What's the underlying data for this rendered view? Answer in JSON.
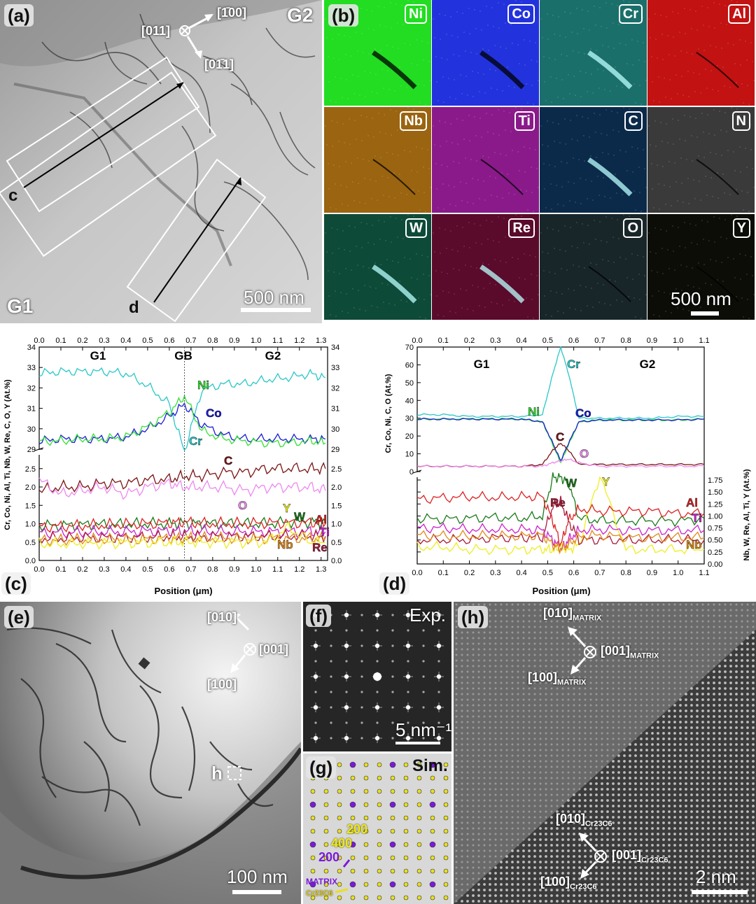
{
  "panel_a": {
    "label": "(a)",
    "grain_top": "G2",
    "grain_bottom": "G1",
    "zone_axis": "[011]",
    "dir1": "[1̄00]",
    "dir2": "[01̄1]",
    "line_c": "c",
    "line_d": "d",
    "scale": "500 nm"
  },
  "panel_b": {
    "label": "(b)",
    "scale": "500 nm",
    "maps": [
      {
        "element": "Ni",
        "color": "#22dd22"
      },
      {
        "element": "Co",
        "color": "#2233dd"
      },
      {
        "element": "Cr",
        "color": "#1a6f6a"
      },
      {
        "element": "Al",
        "color": "#c21212"
      },
      {
        "element": "Nb",
        "color": "#9a6410"
      },
      {
        "element": "Ti",
        "color": "#8a1a8a"
      },
      {
        "element": "C",
        "color": "#0b2a4a"
      },
      {
        "element": "N",
        "color": "#3a3a3a"
      },
      {
        "element": "W",
        "color": "#0e4a38"
      },
      {
        "element": "Re",
        "color": "#5a0a2a"
      },
      {
        "element": "O",
        "color": "#18262a"
      },
      {
        "element": "Y",
        "color": "#0d0d08"
      }
    ]
  },
  "panel_c": {
    "label": "(c)",
    "xlabel": "Position (μm)",
    "ylabel_left": "Cr, Co, Ni, Al, Ti, Nb, W, Re, C, O, Y (At.%)",
    "regions": [
      "G1",
      "GB",
      "G2"
    ],
    "species": [
      "Ni",
      "Co",
      "Cr",
      "C",
      "O",
      "Y",
      "W",
      "Al",
      "Ti",
      "Nb",
      "Re"
    ]
  },
  "panel_d": {
    "label": "(d)",
    "xlabel": "Position (μm)",
    "ylabel_left": "Cr, Co, Ni, C, O (At.%)",
    "ylabel_right": "Nb, W, Re, Al, Ti, Y (At.%)",
    "regions": [
      "G1",
      "G2"
    ],
    "species": [
      "Cr",
      "Ni",
      "Co",
      "C",
      "O",
      "W",
      "Y",
      "Re",
      "Al",
      "Ti",
      "Nb"
    ]
  },
  "panel_e": {
    "label": "(e)",
    "dir_top": "[010]",
    "dir_right": "[001]",
    "dir_bottom": "[100]",
    "marker": "h",
    "scale": "100 nm"
  },
  "panel_f": {
    "label": "(f)",
    "tag": "Exp.",
    "scale": "5 nm⁻¹"
  },
  "panel_g": {
    "label": "(g)",
    "tag": "Sim.",
    "idx_200_yellow": "200",
    "idx_400": "400",
    "idx_200_purple": "200",
    "legend_matrix": "MATRIX",
    "legend_carbide": "Cr23C6"
  },
  "panel_h": {
    "label": "(h)",
    "matrix_dir1": "[010]",
    "matrix_dir2": "[001]",
    "matrix_dir3": "[100]",
    "matrix_sub": "MATRIX",
    "carbide_dir1": "[010]",
    "carbide_dir2": "[001]",
    "carbide_dir3": "[100]",
    "carbide_sub": "Cr23C6",
    "scale": "2 nm"
  },
  "chart_data": [
    {
      "type": "line",
      "panel": "c",
      "xlabel": "Position (μm)",
      "ylabel": "Cr, Co, Ni, Al, Ti, Nb, W, Re, C, O, Y (At.%)",
      "xlim": [
        0,
        1.33
      ],
      "ylim_upper": [
        29,
        34
      ],
      "ylim_lower": [
        0,
        2.8
      ],
      "x": [
        0.0,
        0.1,
        0.2,
        0.3,
        0.4,
        0.5,
        0.6,
        0.67,
        0.75,
        0.85,
        0.95,
        1.05,
        1.15,
        1.25,
        1.32
      ],
      "series": [
        {
          "name": "Cr",
          "color": "#29c7c7",
          "values": [
            32.7,
            32.8,
            32.8,
            32.8,
            32.7,
            32.1,
            31.2,
            28.9,
            31.9,
            32.2,
            32.2,
            32.4,
            32.5,
            32.7,
            32.5
          ]
        },
        {
          "name": "Co",
          "color": "#1a1ad6",
          "values": [
            29.4,
            29.5,
            29.5,
            29.5,
            29.6,
            30.0,
            30.6,
            31.2,
            30.2,
            29.7,
            29.5,
            29.5,
            29.5,
            29.5,
            29.5
          ]
        },
        {
          "name": "Ni",
          "color": "#33e033",
          "values": [
            29.4,
            29.4,
            29.5,
            29.5,
            29.6,
            30.1,
            30.8,
            31.6,
            29.9,
            29.5,
            29.4,
            29.3,
            29.3,
            29.4,
            29.3
          ]
        },
        {
          "name": "C",
          "color": "#7a1414",
          "values": [
            1.9,
            2.0,
            2.0,
            2.1,
            2.1,
            2.2,
            2.2,
            2.3,
            2.3,
            2.4,
            2.4,
            2.5,
            2.5,
            2.5,
            2.5
          ]
        },
        {
          "name": "O",
          "color": "#ee88ee",
          "values": [
            2.2,
            1.8,
            1.9,
            2.0,
            1.8,
            2.0,
            2.1,
            2.0,
            2.0,
            2.0,
            1.9,
            2.0,
            2.0,
            2.0,
            1.9
          ]
        },
        {
          "name": "W",
          "color": "#1a7a1a",
          "values": [
            0.95,
            0.95,
            0.97,
            0.98,
            0.98,
            1.0,
            1.0,
            1.02,
            1.0,
            1.0,
            1.0,
            1.0,
            1.05,
            1.05,
            1.05
          ]
        },
        {
          "name": "Al",
          "color": "#dd2222",
          "values": [
            0.92,
            0.93,
            0.95,
            0.96,
            0.98,
            1.0,
            1.02,
            1.05,
            1.0,
            1.0,
            1.0,
            1.02,
            1.02,
            1.03,
            1.0
          ]
        },
        {
          "name": "Ti",
          "color": "#cc22cc",
          "values": [
            0.75,
            0.76,
            0.76,
            0.78,
            0.78,
            0.8,
            0.8,
            0.8,
            0.8,
            0.78,
            0.78,
            0.78,
            0.78,
            0.78,
            0.78
          ]
        },
        {
          "name": "Re",
          "color": "#aa1a3a",
          "values": [
            0.6,
            0.6,
            0.62,
            0.62,
            0.63,
            0.63,
            0.65,
            0.65,
            0.65,
            0.65,
            0.66,
            0.66,
            0.66,
            0.66,
            0.66
          ]
        },
        {
          "name": "Nb",
          "color": "#e08a1a",
          "values": [
            0.55,
            0.55,
            0.56,
            0.57,
            0.58,
            0.58,
            0.6,
            0.6,
            0.6,
            0.6,
            0.6,
            0.6,
            0.6,
            0.6,
            0.6
          ]
        },
        {
          "name": "Y",
          "color": "#eeee22",
          "values": [
            0.45,
            0.45,
            0.46,
            0.47,
            0.48,
            0.48,
            0.5,
            0.5,
            0.5,
            0.5,
            0.5,
            0.5,
            0.9,
            0.5,
            0.5
          ]
        }
      ]
    },
    {
      "type": "line",
      "panel": "d",
      "xlabel": "Position (μm)",
      "ylabel": "Cr, Co, Ni, C, O (At.%)",
      "ylabel_right": "Nb, W, Re, Al, Ti, Y (At.%)",
      "xlim": [
        0,
        1.1
      ],
      "ylim_upper": [
        0,
        70
      ],
      "ylim_lower": [
        0,
        1.75
      ],
      "x": [
        0.0,
        0.1,
        0.2,
        0.3,
        0.4,
        0.48,
        0.52,
        0.55,
        0.58,
        0.62,
        0.7,
        0.8,
        0.9,
        1.0,
        1.1
      ],
      "series": [
        {
          "name": "Cr",
          "color": "#29c7c7",
          "values": [
            32,
            32,
            31,
            31,
            31,
            32,
            55,
            70,
            55,
            30,
            30,
            30,
            30,
            31,
            31
          ]
        },
        {
          "name": "Ni",
          "color": "#33e033",
          "values": [
            29.5,
            29.5,
            29.5,
            29.5,
            29.5,
            28,
            15,
            5,
            15,
            28,
            29,
            29,
            29,
            29,
            29.5
          ]
        },
        {
          "name": "Co",
          "color": "#1a1ad6",
          "values": [
            29.5,
            29.5,
            29.5,
            29.5,
            29.5,
            28,
            16,
            6,
            16,
            28,
            29,
            29,
            29,
            29,
            29.5
          ]
        },
        {
          "name": "C",
          "color": "#7a1414",
          "values": [
            3,
            3,
            3,
            3,
            3,
            4,
            12,
            16,
            12,
            4,
            4,
            4,
            4,
            4,
            4
          ]
        },
        {
          "name": "O",
          "color": "#ee88ee",
          "values": [
            3,
            3,
            3,
            3,
            3,
            3,
            5,
            6,
            7,
            5,
            3,
            3,
            3,
            3,
            3
          ]
        },
        {
          "name": "W",
          "color": "#1a7a1a",
          "values": [
            0.95,
            0.93,
            0.95,
            0.97,
            0.95,
            1.0,
            1.8,
            1.8,
            1.7,
            0.95,
            0.9,
            0.9,
            0.9,
            0.9,
            0.95
          ]
        },
        {
          "name": "Y",
          "color": "#eeee22",
          "values": [
            0.35,
            0.35,
            0.3,
            0.3,
            0.3,
            0.3,
            0.3,
            0.35,
            0.3,
            0.4,
            1.85,
            0.3,
            0.3,
            0.3,
            0.3
          ]
        },
        {
          "name": "Re",
          "color": "#aa1a3a",
          "values": [
            0.5,
            0.5,
            0.5,
            0.55,
            0.55,
            0.55,
            1.2,
            1.3,
            0.9,
            0.5,
            0.5,
            0.5,
            0.5,
            0.5,
            0.5
          ]
        },
        {
          "name": "Al",
          "color": "#dd2222",
          "values": [
            1.35,
            1.38,
            1.4,
            1.38,
            1.4,
            1.4,
            0.9,
            0.4,
            0.9,
            1.15,
            1.1,
            1.1,
            1.1,
            1.05,
            1.05
          ]
        },
        {
          "name": "Ti",
          "color": "#cc22cc",
          "values": [
            0.75,
            0.75,
            0.72,
            0.72,
            0.72,
            0.7,
            0.5,
            0.3,
            0.5,
            0.7,
            0.72,
            0.7,
            0.7,
            0.7,
            0.7
          ]
        },
        {
          "name": "Nb",
          "color": "#e08a1a",
          "values": [
            0.6,
            0.58,
            0.58,
            0.58,
            0.58,
            0.6,
            0.4,
            0.3,
            0.4,
            0.58,
            0.6,
            0.55,
            0.55,
            0.55,
            0.55
          ]
        }
      ]
    }
  ]
}
